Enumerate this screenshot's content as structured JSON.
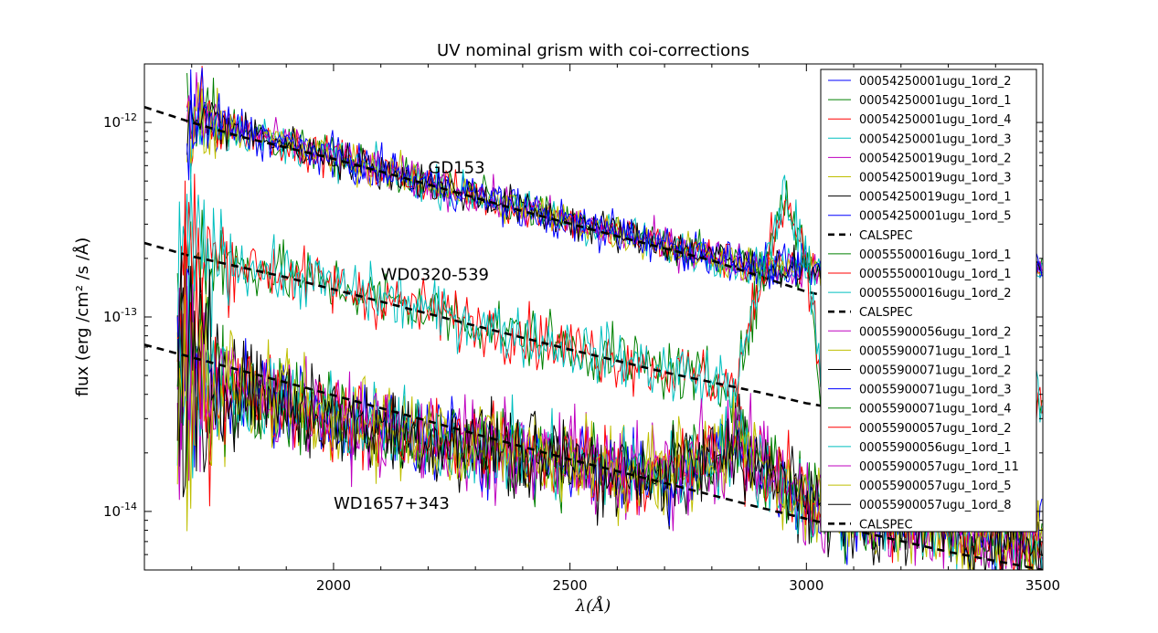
{
  "chart_data": {
    "type": "line",
    "title": "UV nominal grism with coi-corrections",
    "xlabel": "λ(Å)",
    "ylabel": "flux (erg /cm² /s /Å)",
    "xlim": [
      1600,
      3500
    ],
    "ylim": [
      5e-15,
      2e-12
    ],
    "yscale": "log",
    "grid": false,
    "legend_position": "upper-right",
    "x_ticks": [
      2000,
      2500,
      3000,
      3500
    ],
    "y_ticks": [
      {
        "value": 1e-12,
        "base": "10",
        "exp": "-12"
      },
      {
        "value": 1e-13,
        "base": "10",
        "exp": "-13"
      },
      {
        "value": 1e-14,
        "base": "10",
        "exp": "-14"
      }
    ],
    "annotations": [
      {
        "text": "GD153",
        "x": 2200,
        "y": 5.5e-13
      },
      {
        "text": "WD0320-539",
        "x": 2100,
        "y": 1.55e-13
      },
      {
        "text": "WD1657+343",
        "x": 2000,
        "y": 1.03e-14
      }
    ],
    "groups": [
      {
        "star": "GD153",
        "calspec": [
          [
            1600,
            1.2e-12
          ],
          [
            1700,
            1e-12
          ],
          [
            1800,
            8.5e-13
          ],
          [
            2000,
            6.5e-13
          ],
          [
            2200,
            4.8e-13
          ],
          [
            2400,
            3.5e-13
          ],
          [
            2600,
            2.6e-13
          ],
          [
            2800,
            1.95e-13
          ],
          [
            3000,
            1.35e-13
          ],
          [
            3030,
            1.3e-13
          ]
        ],
        "obs_start": 1690,
        "obs_end": 3500,
        "noise": 0.11,
        "obs_profile": [
          [
            1690,
            8.5e-13
          ],
          [
            1720,
            1.05e-12
          ],
          [
            2000,
            6.6e-13
          ],
          [
            2500,
            3.1e-13
          ],
          [
            2900,
            1.8e-13
          ],
          [
            3300,
            1.7e-13
          ],
          [
            3500,
            1.75e-13
          ]
        ],
        "series": [
          {
            "name": "00054250001ugu_1ord_2",
            "color": "#0000ff"
          },
          {
            "name": "00054250001ugu_1ord_1",
            "color": "#008000"
          },
          {
            "name": "00054250001ugu_1ord_4",
            "color": "#ff0000"
          },
          {
            "name": "00054250001ugu_1ord_3",
            "color": "#00bfbf"
          },
          {
            "name": "00054250019ugu_1ord_2",
            "color": "#bf00bf"
          },
          {
            "name": "00054250019ugu_1ord_3",
            "color": "#bfbf00"
          },
          {
            "name": "00054250019ugu_1ord_1",
            "color": "#000000"
          },
          {
            "name": "00054250001ugu_1ord_5",
            "color": "#0000ff"
          }
        ],
        "calspec_label": "CALSPEC"
      },
      {
        "star": "WD0320-539",
        "calspec": [
          [
            1600,
            2.4e-13
          ],
          [
            1700,
            2.05e-13
          ],
          [
            1900,
            1.6e-13
          ],
          [
            2100,
            1.2e-13
          ],
          [
            2300,
            9e-14
          ],
          [
            2500,
            6.8e-14
          ],
          [
            2700,
            5.2e-14
          ],
          [
            2900,
            4.1e-14
          ],
          [
            3000,
            3.6e-14
          ],
          [
            3030,
            3.5e-14
          ]
        ],
        "obs_start": 1670,
        "obs_end": 3500,
        "noise": 0.17,
        "obs_profile": [
          [
            1670,
            1e-13
          ],
          [
            1690,
            2.2e-13
          ],
          [
            2000,
            1.45e-13
          ],
          [
            2500,
            7e-14
          ],
          [
            2850,
            4.4e-14
          ],
          [
            2950,
            4.2e-13
          ],
          [
            3000,
            2.2e-13
          ],
          [
            3030,
            4.5e-14
          ],
          [
            3500,
            3.6e-14
          ]
        ],
        "series": [
          {
            "name": "00055500016ugu_1ord_1",
            "color": "#008000"
          },
          {
            "name": "00055500010ugu_1ord_1",
            "color": "#ff0000"
          },
          {
            "name": "00055500016ugu_1ord_2",
            "color": "#00bfbf"
          }
        ],
        "calspec_label": "CALSPEC"
      },
      {
        "star": "WD1657+343",
        "calspec": [
          [
            1600,
            7.2e-14
          ],
          [
            1700,
            6.2e-14
          ],
          [
            1900,
            4.6e-14
          ],
          [
            2100,
            3.4e-14
          ],
          [
            2300,
            2.5e-14
          ],
          [
            2500,
            1.85e-14
          ],
          [
            2700,
            1.4e-14
          ],
          [
            2900,
            1.05e-14
          ],
          [
            3100,
            8e-15
          ],
          [
            3300,
            6.2e-15
          ],
          [
            3500,
            5e-15
          ]
        ],
        "obs_start": 1670,
        "obs_end": 3500,
        "noise": 0.25,
        "obs_profile": [
          [
            1670,
            5e-14
          ],
          [
            1720,
            5e-14
          ],
          [
            2000,
            3e-14
          ],
          [
            2500,
            1.8e-14
          ],
          [
            2700,
            1.5e-14
          ],
          [
            2850,
            2.2e-14
          ],
          [
            3000,
            1.1e-14
          ],
          [
            3500,
            7e-15
          ]
        ],
        "series": [
          {
            "name": "00055900056ugu_1ord_2",
            "color": "#bf00bf"
          },
          {
            "name": "00055900071ugu_1ord_1",
            "color": "#bfbf00"
          },
          {
            "name": "00055900071ugu_1ord_2",
            "color": "#000000"
          },
          {
            "name": "00055900071ugu_1ord_3",
            "color": "#0000ff"
          },
          {
            "name": "00055900071ugu_1ord_4",
            "color": "#008000"
          },
          {
            "name": "00055900057ugu_1ord_2",
            "color": "#ff0000"
          },
          {
            "name": "00055900056ugu_1ord_1",
            "color": "#00bfbf"
          },
          {
            "name": "00055900057ugu_1ord_11",
            "color": "#bf00bf"
          },
          {
            "name": "00055900057ugu_1ord_5",
            "color": "#bfbf00"
          },
          {
            "name": "00055900057ugu_1ord_8",
            "color": "#000000"
          }
        ],
        "calspec_label": "CALSPEC"
      }
    ]
  }
}
